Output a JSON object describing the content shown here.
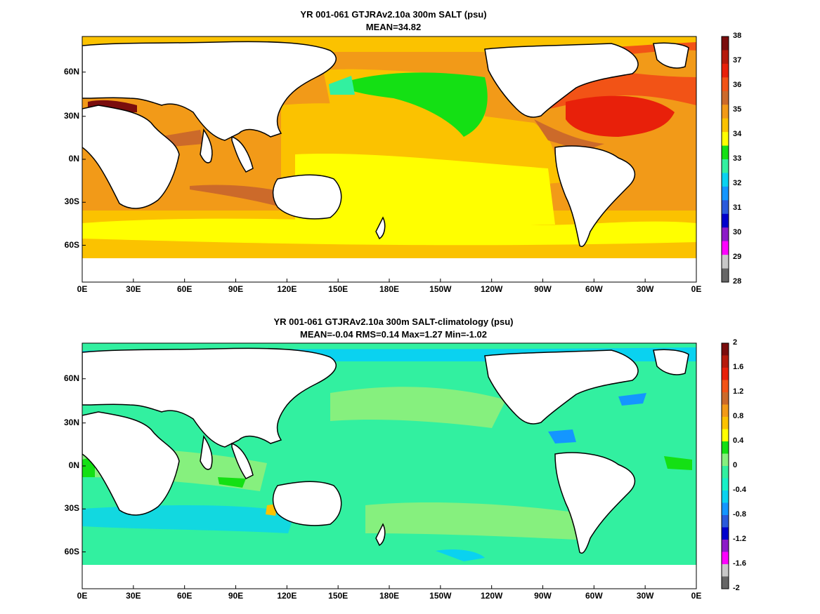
{
  "panels": [
    {
      "title": "YR 001-061 GTJRAv2.10a 300m SALT (psu)",
      "subtitle": "MEAN=34.82",
      "colorbar": {
        "ticks": [
          "38",
          "37",
          "36",
          "35",
          "34",
          "33",
          "32",
          "31",
          "30",
          "29",
          "28"
        ],
        "colors": [
          "#7a0d0d",
          "#b51a0c",
          "#e8200a",
          "#f25316",
          "#cc6a2a",
          "#f29a18",
          "#fbc200",
          "#ffff00",
          "#14e014",
          "#32f0a0",
          "#0ad2f0",
          "#1496ff",
          "#2a5adb",
          "#0000cc",
          "#8c1ac8",
          "#ff00ff",
          "#c8c8c8",
          "#666666"
        ]
      },
      "x_ticks": [
        "0E",
        "30E",
        "60E",
        "90E",
        "120E",
        "150E",
        "180E",
        "150W",
        "120W",
        "90W",
        "60W",
        "30W",
        "0E"
      ],
      "y_ticks": [
        "60N",
        "30N",
        "0N",
        "30S",
        "60S"
      ]
    },
    {
      "title": "YR 001-061 GTJRAv2.10a 300m SALT-climatology (psu)",
      "subtitle": "MEAN=-0.04   RMS=0.14   Max=1.27   Min=-1.02",
      "colorbar": {
        "ticks": [
          "2",
          "1.6",
          "1.2",
          "0.8",
          "0.4",
          "0",
          "-0.4",
          "-0.8",
          "-1.2",
          "-1.6",
          "-2"
        ],
        "colors": [
          "#7a0d0d",
          "#b51a0c",
          "#e8200a",
          "#f25316",
          "#cc6a2a",
          "#f29a18",
          "#fbc200",
          "#ffff00",
          "#14e014",
          "#86f07e",
          "#32f0a0",
          "#18f0c8",
          "#0ad2f0",
          "#1496ff",
          "#2a5adb",
          "#0000cc",
          "#8c1ac8",
          "#ff00ff",
          "#c8c8c8",
          "#666666"
        ]
      },
      "x_ticks": [
        "0E",
        "30E",
        "60E",
        "90E",
        "120E",
        "150E",
        "180E",
        "150W",
        "120W",
        "90W",
        "60W",
        "30W",
        "0E"
      ],
      "y_ticks": [
        "60N",
        "30N",
        "0N",
        "30S",
        "60S"
      ]
    }
  ]
}
